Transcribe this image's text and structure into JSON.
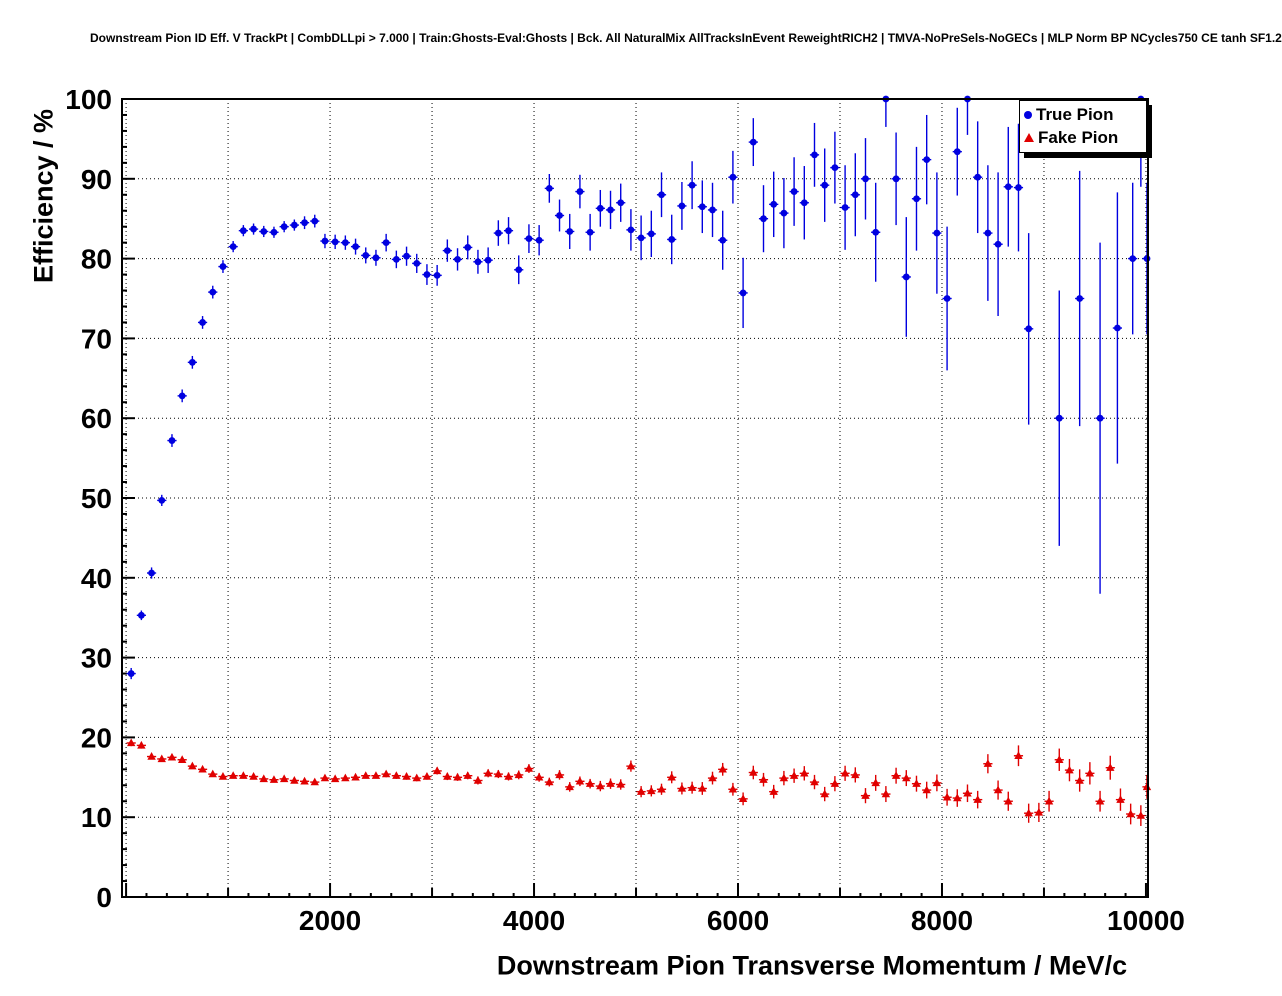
{
  "page": {
    "background": "#ffffff"
  },
  "chart_data": {
    "type": "scatter",
    "title": "Downstream Pion ID Eff. V TrackPt | CombDLLpi > 7.000 | Train:Ghosts-Eval:Ghosts | Bck. All NaturalMix AllTracksInEvent ReweightRICH2 | TMVA-NoPreSels-NoGECs | MLP Norm BP NCycles750 CE tanh SF1.2",
    "xlabel": "Downstream Pion Transverse Momentum / MeV/c",
    "ylabel": "Efficiency / %",
    "xlim": [
      -40,
      10020
    ],
    "ylim": [
      0,
      100
    ],
    "xticks": [
      2000,
      4000,
      6000,
      8000,
      10000
    ],
    "yticks": [
      0,
      10,
      20,
      30,
      40,
      50,
      60,
      70,
      80,
      90,
      100
    ],
    "grid": true,
    "legend_position": "top-right",
    "series": [
      {
        "name": "True Pion",
        "marker": "circle",
        "color": "#0000e0",
        "points": [
          [
            50,
            28,
            0.7
          ],
          [
            150,
            35.3,
            0.6
          ],
          [
            250,
            40.6,
            0.7
          ],
          [
            350,
            49.7,
            0.7
          ],
          [
            450,
            57.2,
            0.8
          ],
          [
            550,
            62.8,
            0.8
          ],
          [
            650,
            67,
            0.8
          ],
          [
            750,
            72,
            0.8
          ],
          [
            850,
            75.8,
            0.8
          ],
          [
            950,
            79,
            0.8
          ],
          [
            1050,
            81.5,
            0.7
          ],
          [
            1150,
            83.5,
            0.7
          ],
          [
            1250,
            83.7,
            0.7
          ],
          [
            1350,
            83.4,
            0.7
          ],
          [
            1450,
            83.3,
            0.7
          ],
          [
            1550,
            84,
            0.7
          ],
          [
            1650,
            84.2,
            0.7
          ],
          [
            1750,
            84.5,
            0.8
          ],
          [
            1850,
            84.7,
            0.8
          ],
          [
            1950,
            82.2,
            0.9
          ],
          [
            2050,
            82.1,
            0.9
          ],
          [
            2150,
            82,
            0.9
          ],
          [
            2250,
            81.5,
            1
          ],
          [
            2350,
            80.4,
            1
          ],
          [
            2450,
            80.1,
            1
          ],
          [
            2550,
            82,
            1.1
          ],
          [
            2650,
            79.9,
            1.1
          ],
          [
            2750,
            80.3,
            1.2
          ],
          [
            2850,
            79.4,
            1.2
          ],
          [
            2950,
            78,
            1.3
          ],
          [
            3050,
            77.9,
            1.3
          ],
          [
            3150,
            81,
            1.4
          ],
          [
            3250,
            79.9,
            1.4
          ],
          [
            3350,
            81.4,
            1.5
          ],
          [
            3450,
            79.6,
            1.5
          ],
          [
            3550,
            79.8,
            1.6
          ],
          [
            3650,
            83.2,
            1.6
          ],
          [
            3750,
            83.5,
            1.7
          ],
          [
            3850,
            78.6,
            1.8
          ],
          [
            3950,
            82.5,
            1.8
          ],
          [
            4050,
            82.3,
            1.9
          ],
          [
            4150,
            88.8,
            1.8
          ],
          [
            4250,
            85.4,
            2
          ],
          [
            4350,
            83.4,
            2.2
          ],
          [
            4450,
            88.4,
            2.1
          ],
          [
            4550,
            83.3,
            2.3
          ],
          [
            4650,
            86.3,
            2.3
          ],
          [
            4750,
            86.1,
            2.4
          ],
          [
            4850,
            87,
            2.4
          ],
          [
            4950,
            83.6,
            2.6
          ],
          [
            5050,
            82.6,
            2.8
          ],
          [
            5150,
            83.1,
            2.9
          ],
          [
            5250,
            88,
            2.8
          ],
          [
            5350,
            82.4,
            3.1
          ],
          [
            5450,
            86.6,
            3
          ],
          [
            5550,
            89.2,
            3
          ],
          [
            5650,
            86.5,
            3.3
          ],
          [
            5750,
            86.1,
            3.4
          ],
          [
            5850,
            82.3,
            3.7
          ],
          [
            5950,
            90.2,
            3.3
          ],
          [
            6050,
            75.7,
            4.4
          ],
          [
            6150,
            94.6,
            3
          ],
          [
            6250,
            85,
            4.2
          ],
          [
            6350,
            86.8,
            4.1
          ],
          [
            6450,
            85.7,
            4.4
          ],
          [
            6550,
            88.4,
            4.3
          ],
          [
            6650,
            87,
            4.6
          ],
          [
            6750,
            93,
            4
          ],
          [
            6850,
            89.2,
            4.6
          ],
          [
            6950,
            91.4,
            4.5
          ],
          [
            7050,
            86.4,
            5.3
          ],
          [
            7150,
            88,
            5.2
          ],
          [
            7250,
            90,
            5.1
          ],
          [
            7350,
            83.3,
            6.2
          ],
          [
            7450,
            100,
            3.5
          ],
          [
            7550,
            90,
            5.8
          ],
          [
            7650,
            77.7,
            7.5
          ],
          [
            7750,
            87.5,
            6.5
          ],
          [
            7850,
            92.4,
            5.6
          ],
          [
            7950,
            83.2,
            7.6
          ],
          [
            8050,
            75,
            9
          ],
          [
            8150,
            93.4,
            5.5
          ],
          [
            8250,
            100,
            4.5
          ],
          [
            8350,
            90.2,
            7
          ],
          [
            8450,
            83.2,
            8.5
          ],
          [
            8550,
            81.8,
            9
          ],
          [
            8650,
            89,
            7.5
          ],
          [
            8750,
            88.9,
            8
          ],
          [
            8850,
            71.2,
            12
          ],
          [
            9150,
            60,
            16
          ],
          [
            9350,
            75,
            16
          ],
          [
            9550,
            60,
            22
          ],
          [
            9720,
            71.3,
            17
          ],
          [
            9870,
            80,
            9.5
          ],
          [
            9950,
            100,
            11
          ],
          [
            10010,
            80,
            9.5
          ]
        ]
      },
      {
        "name": "Fake Pion",
        "marker": "triangle",
        "color": "#e00000",
        "points": [
          [
            50,
            19.3,
            0.4
          ],
          [
            150,
            19,
            0.4
          ],
          [
            250,
            17.6,
            0.35
          ],
          [
            350,
            17.3,
            0.35
          ],
          [
            450,
            17.5,
            0.35
          ],
          [
            550,
            17.2,
            0.35
          ],
          [
            650,
            16.4,
            0.35
          ],
          [
            750,
            16,
            0.35
          ],
          [
            850,
            15.4,
            0.3
          ],
          [
            950,
            15.1,
            0.3
          ],
          [
            1050,
            15.2,
            0.3
          ],
          [
            1150,
            15.2,
            0.3
          ],
          [
            1250,
            15.1,
            0.3
          ],
          [
            1350,
            14.8,
            0.3
          ],
          [
            1450,
            14.7,
            0.3
          ],
          [
            1550,
            14.8,
            0.3
          ],
          [
            1650,
            14.6,
            0.3
          ],
          [
            1750,
            14.5,
            0.3
          ],
          [
            1850,
            14.4,
            0.3
          ],
          [
            1950,
            14.9,
            0.3
          ],
          [
            2050,
            14.8,
            0.3
          ],
          [
            2150,
            14.9,
            0.35
          ],
          [
            2250,
            15,
            0.35
          ],
          [
            2350,
            15.2,
            0.35
          ],
          [
            2450,
            15.2,
            0.35
          ],
          [
            2550,
            15.4,
            0.4
          ],
          [
            2650,
            15.2,
            0.4
          ],
          [
            2750,
            15.1,
            0.4
          ],
          [
            2850,
            14.9,
            0.4
          ],
          [
            2950,
            15.1,
            0.4
          ],
          [
            3050,
            15.8,
            0.45
          ],
          [
            3150,
            15.1,
            0.45
          ],
          [
            3250,
            15,
            0.45
          ],
          [
            3350,
            15.2,
            0.45
          ],
          [
            3450,
            14.6,
            0.5
          ],
          [
            3550,
            15.5,
            0.5
          ],
          [
            3650,
            15.4,
            0.5
          ],
          [
            3750,
            15.1,
            0.5
          ],
          [
            3850,
            15.3,
            0.55
          ],
          [
            3950,
            16.1,
            0.55
          ],
          [
            4050,
            15,
            0.55
          ],
          [
            4150,
            14.4,
            0.55
          ],
          [
            4250,
            15.3,
            0.6
          ],
          [
            4350,
            13.8,
            0.6
          ],
          [
            4450,
            14.5,
            0.6
          ],
          [
            4550,
            14.2,
            0.6
          ],
          [
            4650,
            13.9,
            0.65
          ],
          [
            4750,
            14.2,
            0.65
          ],
          [
            4850,
            14.1,
            0.65
          ],
          [
            4950,
            16.4,
            0.7
          ],
          [
            5050,
            13.2,
            0.7
          ],
          [
            5150,
            13.3,
            0.7
          ],
          [
            5250,
            13.5,
            0.7
          ],
          [
            5350,
            15,
            0.75
          ],
          [
            5450,
            13.6,
            0.75
          ],
          [
            5550,
            13.7,
            0.75
          ],
          [
            5650,
            13.6,
            0.8
          ],
          [
            5750,
            14.9,
            0.8
          ],
          [
            5850,
            16,
            0.8
          ],
          [
            5950,
            13.5,
            0.8
          ],
          [
            6050,
            12.3,
            0.8
          ],
          [
            6150,
            15.6,
            0.85
          ],
          [
            6250,
            14.7,
            0.85
          ],
          [
            6350,
            13.2,
            0.85
          ],
          [
            6450,
            14.9,
            0.9
          ],
          [
            6550,
            15.2,
            0.9
          ],
          [
            6650,
            15.5,
            0.9
          ],
          [
            6750,
            14.4,
            0.9
          ],
          [
            6850,
            12.9,
            0.9
          ],
          [
            6950,
            14.2,
            0.95
          ],
          [
            7050,
            15.5,
            0.95
          ],
          [
            7150,
            15.3,
            0.95
          ],
          [
            7250,
            12.7,
            0.95
          ],
          [
            7350,
            14.3,
            1
          ],
          [
            7450,
            12.9,
            1
          ],
          [
            7550,
            15.2,
            1
          ],
          [
            7650,
            14.9,
            1
          ],
          [
            7750,
            14.2,
            1
          ],
          [
            7850,
            13.4,
            1.05
          ],
          [
            7950,
            14.3,
            1.05
          ],
          [
            8050,
            12.5,
            1.05
          ],
          [
            8150,
            12.4,
            1.1
          ],
          [
            8250,
            13,
            1.1
          ],
          [
            8350,
            12.2,
            1.1
          ],
          [
            8450,
            16.7,
            1.2
          ],
          [
            8550,
            13.4,
            1.2
          ],
          [
            8650,
            12,
            1.2
          ],
          [
            8750,
            17.7,
            1.3
          ],
          [
            8850,
            10.5,
            1.2
          ],
          [
            8950,
            10.6,
            1.2
          ],
          [
            9050,
            12,
            1.3
          ],
          [
            9150,
            17.2,
            1.4
          ],
          [
            9250,
            15.9,
            1.4
          ],
          [
            9350,
            14.6,
            1.4
          ],
          [
            9450,
            15.5,
            1.4
          ],
          [
            9550,
            12,
            1.3
          ],
          [
            9650,
            16.2,
            1.5
          ],
          [
            9750,
            12.2,
            1.4
          ],
          [
            9850,
            10.4,
            1.3
          ],
          [
            9950,
            10.2,
            1.3
          ],
          [
            10010,
            13.8,
            1.5
          ]
        ]
      }
    ]
  }
}
